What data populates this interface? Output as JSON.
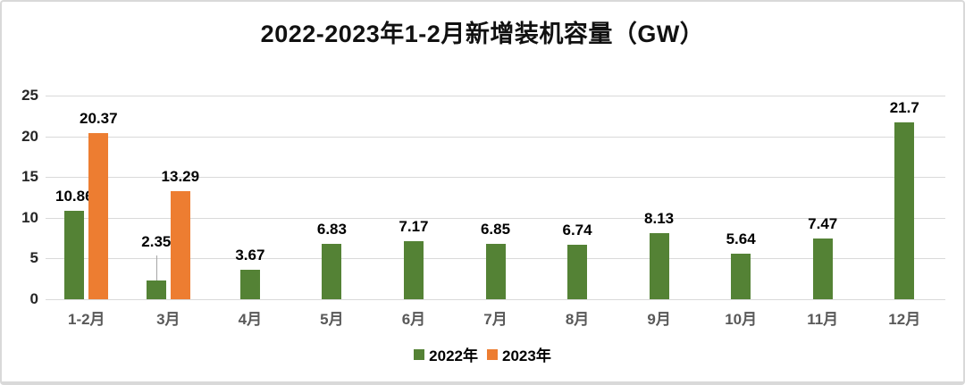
{
  "chart_data": {
    "type": "bar",
    "title": "2022-2023年1-2月新增装机容量（GW）",
    "categories": [
      "1-2月",
      "3月",
      "4月",
      "5月",
      "6月",
      "7月",
      "8月",
      "9月",
      "10月",
      "11月",
      "12月"
    ],
    "series": [
      {
        "name": "2022年",
        "color": "#548235",
        "values": [
          10.86,
          2.35,
          3.67,
          6.83,
          7.17,
          6.85,
          6.74,
          8.13,
          5.64,
          7.47,
          21.7
        ]
      },
      {
        "name": "2023年",
        "color": "#ED7D31",
        "values": [
          20.37,
          13.29,
          null,
          null,
          null,
          null,
          null,
          null,
          null,
          null,
          null
        ]
      }
    ],
    "xlabel": "",
    "ylabel": "",
    "ylim": [
      0,
      25
    ],
    "yticks": [
      0,
      5,
      10,
      15,
      20,
      25
    ],
    "grid": true,
    "legend_position": "bottom",
    "colors": {
      "background": "#ffffff",
      "border": "#d9d9d9",
      "grid": "#d9d9d9",
      "y_tick_label": "#262626",
      "category_label": "#595959",
      "data_label": "#000000",
      "leader_line": "#a6a6a6"
    }
  }
}
